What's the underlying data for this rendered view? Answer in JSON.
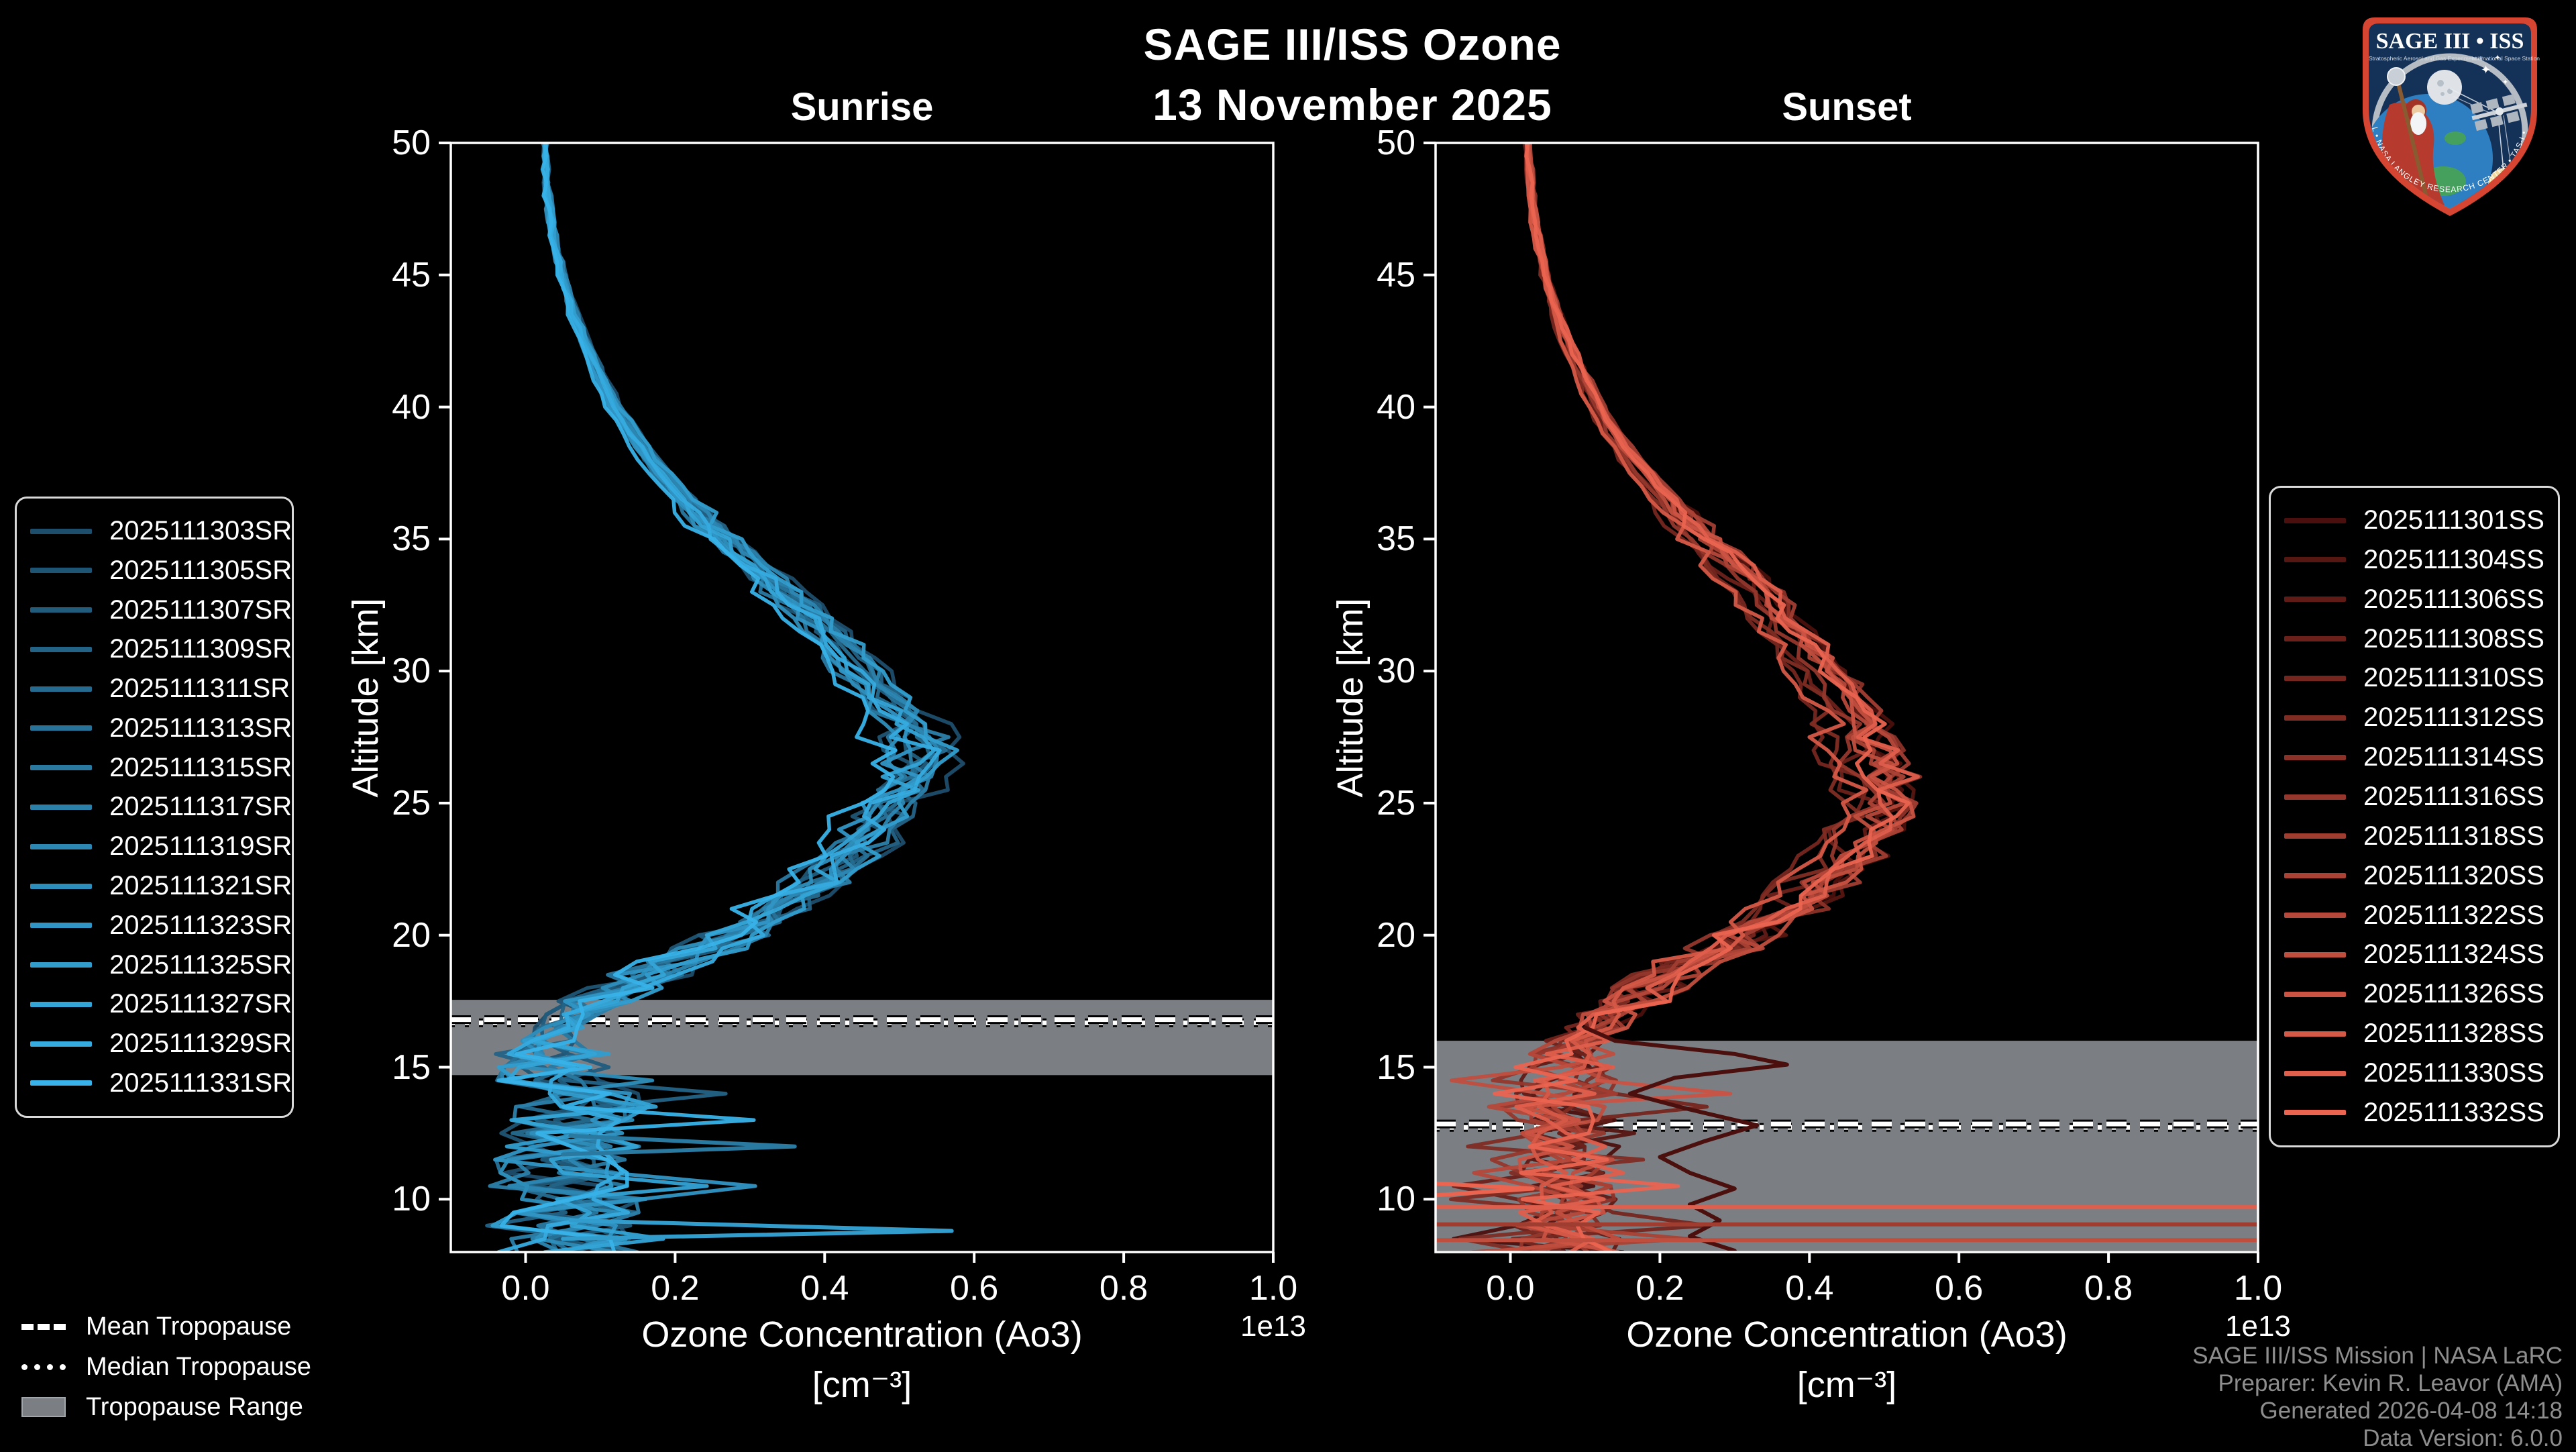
{
  "title": {
    "line1": "SAGE III/ISS Ozone",
    "line2": "13 November 2025"
  },
  "logo": {
    "title": "SAGE III • ISS",
    "subtitle_left": "Stratospheric Aerosol and Gas Experiment III",
    "subtitle_right": "International Space Station",
    "ring_text": "BALL • NASA LANGLEY RESEARCH CENTER • TAS-I • ESA"
  },
  "tropopause_legend": {
    "mean": "Mean Tropopause",
    "median": "Median Tropopause",
    "range": "Tropopause Range"
  },
  "credits": {
    "line1": "SAGE III/ISS Mission | NASA LaRC",
    "line2": "Preparer: Kevin R. Leavor (AMA)",
    "line3": "Generated 2026-04-08 14:18",
    "line4": "Data Version: 6.0.0"
  },
  "chart_data": {
    "type": "line",
    "x_axis": {
      "label_line1": "Ozone Concentration (Ao3)",
      "label_line2": "[cm⁻³]",
      "offset_text": "1e13",
      "tick_labels": [
        "0.0",
        "0.2",
        "0.4",
        "0.6",
        "0.8",
        "1.0"
      ],
      "tick_values": [
        0.0,
        0.2,
        0.4,
        0.6,
        0.8,
        1.0
      ],
      "lim": [
        -0.1,
        1.0
      ]
    },
    "y_axis": {
      "label": "Altitude [km]",
      "tick_labels": [
        "50",
        "45",
        "40",
        "35",
        "30",
        "25",
        "20",
        "15",
        "10"
      ],
      "tick_values": [
        50,
        45,
        40,
        35,
        30,
        25,
        20,
        15,
        10
      ],
      "lim": [
        8,
        50
      ]
    },
    "alt_km": [
      50,
      49,
      48,
      47,
      46,
      45,
      44,
      43,
      42,
      41,
      40,
      39,
      38,
      37,
      36,
      35,
      34,
      33,
      32,
      31,
      30,
      29,
      28,
      27,
      26,
      25,
      24,
      23,
      22,
      21,
      20,
      19,
      18,
      17,
      16,
      15,
      14,
      13,
      12,
      11,
      10,
      9,
      8
    ],
    "panels": [
      {
        "title": "Sunrise",
        "series": [
          "2025111303SR",
          "2025111305SR",
          "2025111307SR",
          "2025111309SR",
          "2025111311SR",
          "2025111313SR",
          "2025111315SR",
          "2025111317SR",
          "2025111319SR",
          "2025111321SR",
          "2025111323SR",
          "2025111325SR",
          "2025111327SR",
          "2025111329SR",
          "2025111331SR"
        ],
        "series_colors": [
          "#1d4e6b",
          "#1f5574",
          "#215c7d",
          "#236386",
          "#256b8f",
          "#277298",
          "#2979a1",
          "#2b80aa",
          "#2c87b2",
          "#2e8ebb",
          "#3095c4",
          "#329dcd",
          "#34a4d6",
          "#36abdf",
          "#38b2e8"
        ],
        "mean_profile_x_1e13": [
          0.025,
          0.027,
          0.03,
          0.034,
          0.04,
          0.048,
          0.058,
          0.07,
          0.085,
          0.1,
          0.118,
          0.14,
          0.165,
          0.195,
          0.225,
          0.26,
          0.3,
          0.34,
          0.375,
          0.41,
          0.44,
          0.47,
          0.5,
          0.52,
          0.505,
          0.48,
          0.455,
          0.42,
          0.385,
          0.33,
          0.27,
          0.2,
          0.13,
          0.06,
          0.035,
          0.05,
          0.06,
          0.045,
          0.06,
          0.05,
          0.07,
          0.06,
          0.07
        ],
        "peak": {
          "x_1e13": 0.53,
          "alt_km": 27.4
        },
        "tropopause": {
          "mean_km": 16.8,
          "median_km": 16.68,
          "range_km": [
            14.7,
            17.55
          ]
        },
        "outliers": [
          {
            "color_index": 11,
            "points_alt_x": [
              [
                9.2,
                0.06
              ],
              [
                8.8,
                0.57
              ],
              [
                8.5,
                0.05
              ]
            ]
          },
          {
            "color_index": 6,
            "points_alt_x": [
              [
                12.4,
                0.06
              ],
              [
                12.0,
                0.36
              ],
              [
                11.7,
                0.05
              ]
            ]
          }
        ]
      },
      {
        "title": "Sunset",
        "series": [
          "2025111301SS",
          "2025111304SS",
          "2025111306SS",
          "2025111308SS",
          "2025111310SS",
          "2025111312SS",
          "2025111314SS",
          "2025111316SS",
          "2025111318SS",
          "2025111320SS",
          "2025111322SS",
          "2025111324SS",
          "2025111326SS",
          "2025111328SS",
          "2025111330SS",
          "2025111332SS"
        ],
        "series_colors": [
          "#4b100d",
          "#561611",
          "#601b16",
          "#6b211a",
          "#75261f",
          "#802c23",
          "#8b3228",
          "#95372c",
          "#a03d31",
          "#aa4235",
          "#b5483a",
          "#c04e3e",
          "#ca5343",
          "#d55947",
          "#df5e4c",
          "#ea6450"
        ],
        "mean_profile_x_1e13": [
          0.022,
          0.025,
          0.028,
          0.032,
          0.038,
          0.046,
          0.056,
          0.068,
          0.082,
          0.098,
          0.115,
          0.135,
          0.16,
          0.19,
          0.22,
          0.255,
          0.29,
          0.325,
          0.355,
          0.385,
          0.41,
          0.435,
          0.455,
          0.47,
          0.48,
          0.49,
          0.475,
          0.44,
          0.41,
          0.37,
          0.31,
          0.25,
          0.19,
          0.13,
          0.09,
          0.07,
          0.08,
          0.065,
          0.075,
          0.065,
          0.08,
          0.07,
          0.08
        ],
        "peak": {
          "x_1e13": 0.5,
          "alt_km": 25.0
        },
        "tropopause": {
          "mean_km": 12.85,
          "median_km": 12.72,
          "range_km": [
            8.05,
            16.0
          ]
        },
        "outliers": [
          {
            "color_index": 0,
            "points_alt_x": [
              [
                16.5,
                0.1
              ],
              [
                16.0,
                0.14
              ],
              [
                15.5,
                0.3
              ],
              [
                15.1,
                0.37
              ],
              [
                14.6,
                0.22
              ],
              [
                14.0,
                0.16
              ],
              [
                13.4,
                0.24
              ],
              [
                12.8,
                0.33
              ],
              [
                12.2,
                0.26
              ],
              [
                11.6,
                0.2
              ],
              [
                11.0,
                0.24
              ],
              [
                10.4,
                0.3
              ],
              [
                9.8,
                0.24
              ],
              [
                9.2,
                0.28
              ],
              [
                8.6,
                0.24
              ],
              [
                8.05,
                0.3
              ]
            ]
          },
          {
            "color_index": 14,
            "points_alt_x": [
              [
                9.7,
                -0.1
              ],
              [
                9.7,
                1.0
              ]
            ]
          },
          {
            "color_index": 8,
            "points_alt_x": [
              [
                9.05,
                -0.1
              ],
              [
                9.05,
                1.0
              ]
            ]
          },
          {
            "color_index": 11,
            "points_alt_x": [
              [
                8.45,
                -0.1
              ],
              [
                8.45,
                1.0
              ]
            ]
          },
          {
            "color_index": 15,
            "points_alt_x": [
              [
                10.6,
                -0.1
              ],
              [
                10.4,
                0.03
              ],
              [
                10.15,
                -0.1
              ]
            ]
          }
        ]
      }
    ],
    "styles": {
      "background": "#000000",
      "frame_color": "#ffffff",
      "tropopause_band_color": "#7b7f83",
      "tropopause_line_color": "#ffffff",
      "line_width": 5.5
    },
    "legend_position": {
      "sunrise": "left",
      "sunset": "right"
    },
    "grid": false
  }
}
